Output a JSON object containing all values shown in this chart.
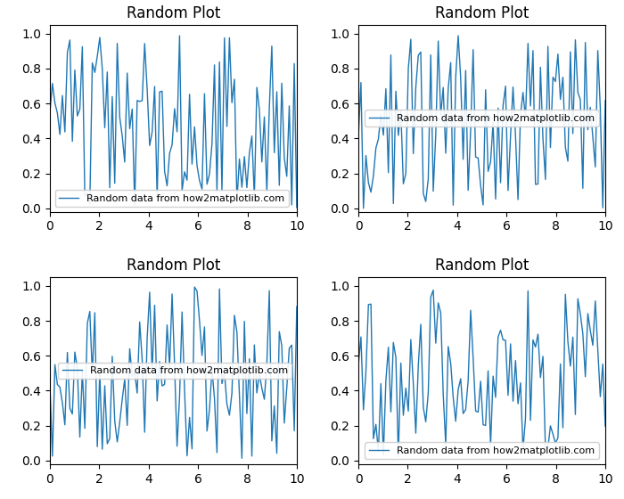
{
  "title": "Random Plot",
  "legend_label": "Random data from how2matplotlib.com",
  "line_color": "#1f77b4",
  "background_color": "#ffffff",
  "xlim": [
    0,
    10
  ],
  "ylim": [
    -0.02,
    1.05
  ],
  "n_points": 100,
  "seeds": [
    0,
    1,
    2,
    3
  ],
  "figsize": [
    7.0,
    5.6
  ],
  "dpi": 100,
  "xticks": [
    0,
    2,
    4,
    6,
    8,
    10
  ],
  "yticks": [
    0.0,
    0.2,
    0.4,
    0.6,
    0.8,
    1.0
  ],
  "legend_positions": [
    "lower left",
    "center",
    "center right",
    "lower center"
  ],
  "title_fontsize": 12,
  "legend_fontsize": 8,
  "linewidth": 1.0,
  "subplot_hspace": 0.35,
  "subplot_wspace": 0.25
}
